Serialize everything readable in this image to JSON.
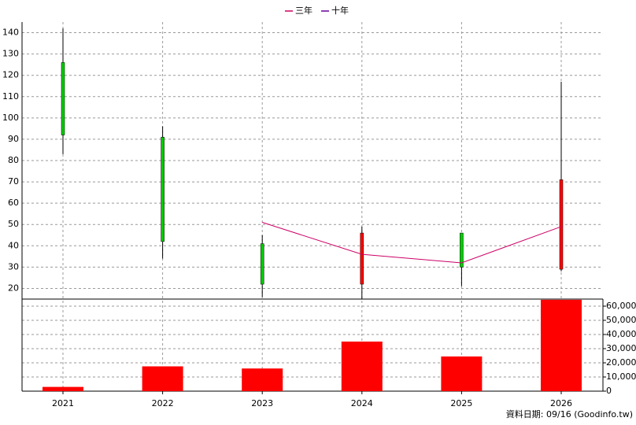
{
  "chart_data": {
    "type": "candlestick",
    "categories": [
      "2021",
      "2022",
      "2023",
      "2024",
      "2025",
      "2026"
    ],
    "open": [
      126,
      91,
      41,
      22,
      46,
      29
    ],
    "close": [
      92,
      42,
      22,
      46,
      30,
      71
    ],
    "high": [
      142,
      96,
      45,
      49,
      46,
      117
    ],
    "low": [
      83,
      34,
      16,
      15,
      21,
      28
    ],
    "up_color": "#ff0000",
    "down_color": "#00cc00",
    "series": [
      {
        "name": "三年",
        "color": "#cc0066",
        "values": [
          null,
          null,
          51,
          36,
          32,
          49
        ]
      },
      {
        "name": "十年",
        "color": "#660099",
        "values": [
          null,
          null,
          null,
          null,
          null,
          null
        ]
      }
    ],
    "ylim": [
      15,
      145
    ],
    "yticks": [
      20,
      30,
      40,
      50,
      60,
      70,
      80,
      90,
      100,
      110,
      120,
      130,
      140
    ],
    "volume": {
      "color": "#ff0000",
      "values": [
        3000,
        17500,
        16000,
        35000,
        24500,
        64500
      ],
      "y2lim": [
        0,
        65000
      ],
      "y2ticks": [
        0,
        {
          "value": 10000,
          "label": "10,000"
        },
        {
          "value": 20000,
          "label": "20,000"
        },
        {
          "value": 30000,
          "label": "30,000"
        },
        {
          "value": 40000,
          "label": "40,000"
        },
        {
          "value": 50000,
          "label": "50,000"
        },
        {
          "value": 60000,
          "label": "60,000"
        }
      ]
    },
    "grid": true,
    "note": "資料日期: 09/16  (Goodinfo.tw)"
  }
}
